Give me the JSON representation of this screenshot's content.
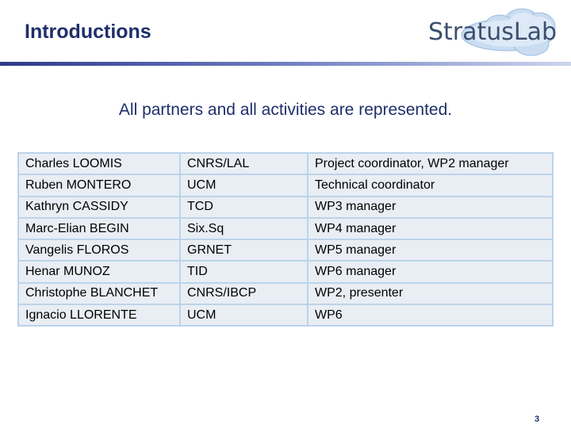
{
  "header": {
    "title": "Introductions",
    "logo": "StratusLab"
  },
  "subtitle": "All partners and all activities are represented.",
  "table": {
    "rows": [
      [
        "Charles LOOMIS",
        "CNRS/LAL",
        "Project coordinator, WP2 manager"
      ],
      [
        "Ruben MONTERO",
        "UCM",
        "Technical coordinator"
      ],
      [
        "Kathryn CASSIDY",
        "TCD",
        "WP3 manager"
      ],
      [
        "Marc-Elian BEGIN",
        "Six.Sq",
        "WP4 manager"
      ],
      [
        "Vangelis FLOROS",
        "GRNET",
        "WP5 manager"
      ],
      [
        "Henar MUNOZ",
        "TID",
        "WP6 manager"
      ],
      [
        "Christophe BLANCHET",
        "CNRS/IBCP",
        "WP2, presenter"
      ],
      [
        "Ignacio LLORENTE",
        "UCM",
        "WP6"
      ]
    ]
  },
  "page_number": "3"
}
